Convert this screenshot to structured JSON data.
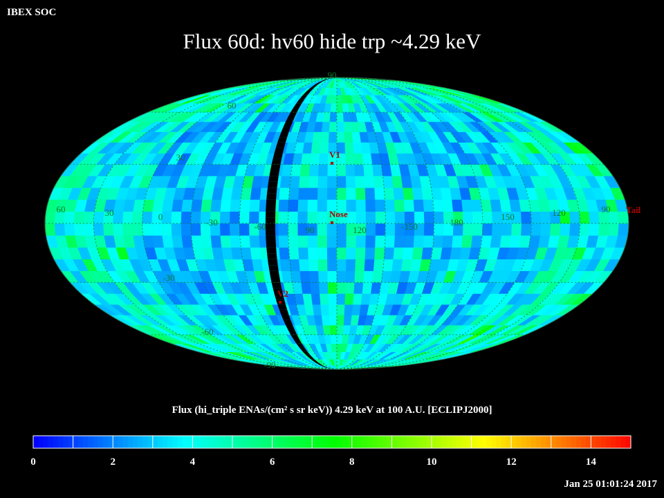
{
  "header": {
    "soc_label": "IBEX SOC",
    "title": "Flux   60d: hv60 hide trp ~4.29 keV"
  },
  "map": {
    "latitude_labels": [
      "90",
      "60",
      "30",
      "-30",
      "-60",
      "-90"
    ],
    "longitude_labels": [
      "60",
      "30",
      "0",
      "-30",
      "-60",
      "90",
      "120",
      "-150",
      "180",
      "150",
      "120",
      "90"
    ],
    "markers": [
      {
        "label": "V1",
        "lon": 0,
        "lat": 30
      },
      {
        "label": "Nose",
        "lon": 0,
        "lat": 5
      },
      {
        "label": "V2",
        "lon": -30,
        "lat": -35
      },
      {
        "label": "Tail",
        "lon": 180,
        "lat": 0
      }
    ],
    "marker_color": "#b00000",
    "grid_label_color": "#0a7a2a"
  },
  "colorbar": {
    "title": "Flux (hi_triple ENAs/(cm² s sr keV))  4.29 keV at 100 A.U. [ECLIPJ2000]",
    "range": [
      0,
      15
    ],
    "ticks": [
      "0",
      "2",
      "4",
      "6",
      "8",
      "10",
      "12",
      "14"
    ],
    "colors": [
      "#0000ff",
      "#0080ff",
      "#00ffff",
      "#00ff80",
      "#00ff00",
      "#80ff00",
      "#ffff00",
      "#ff8000",
      "#ff0000"
    ]
  },
  "timestamp": "Jan 25 01:01:24 2017"
}
